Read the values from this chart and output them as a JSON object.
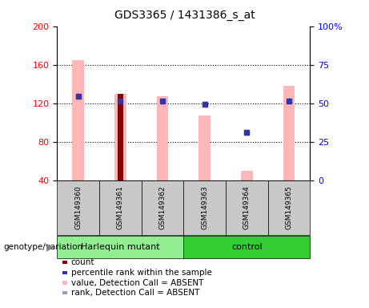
{
  "title": "GDS3365 / 1431386_s_at",
  "samples": [
    "GSM149360",
    "GSM149361",
    "GSM149362",
    "GSM149363",
    "GSM149364",
    "GSM149365"
  ],
  "ylim_left": [
    40,
    200
  ],
  "ylim_right": [
    0,
    100
  ],
  "yticks_left": [
    40,
    80,
    120,
    160,
    200
  ],
  "yticks_right": [
    0,
    25,
    50,
    75,
    100
  ],
  "pink_bar_values": [
    165,
    130,
    127,
    107,
    50,
    138
  ],
  "dark_red_bar_values": [
    null,
    130,
    null,
    null,
    null,
    null
  ],
  "blue_square_values": [
    127,
    122,
    122,
    119,
    90,
    122
  ],
  "bar_bottom": 40,
  "pink_bar_color": "#FFB6B6",
  "dark_red_color": "#8B0000",
  "blue_sq_color": "#3333AA",
  "light_blue_sq_color": "#9999CC",
  "harlequin_color": "#90EE90",
  "control_color": "#33CC33",
  "sample_box_color": "#C8C8C8",
  "legend_colors": [
    "#8B0000",
    "#3333AA",
    "#FFB6B6",
    "#9999CC"
  ],
  "legend_labels": [
    "count",
    "percentile rank within the sample",
    "value, Detection Call = ABSENT",
    "rank, Detection Call = ABSENT"
  ]
}
